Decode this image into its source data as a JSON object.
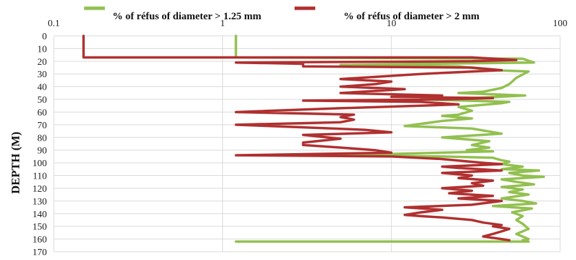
{
  "chart_data": {
    "type": "line",
    "title": "",
    "xlabel": "",
    "ylabel": "DEPTH (M)",
    "x_scale": "log",
    "xlim": [
      0.1,
      100
    ],
    "ylim": [
      0,
      170
    ],
    "y_inverted": true,
    "x_axis_position": "top",
    "grid": {
      "x": true,
      "y": true
    },
    "legend_position": "top",
    "x_tick_labels": [
      "0.1",
      "1",
      "10",
      "100"
    ],
    "y_tick_labels": [
      "0",
      "10",
      "20",
      "30",
      "40",
      "50",
      "60",
      "70",
      "80",
      "90",
      "100",
      "110",
      "120",
      "130",
      "140",
      "150",
      "160",
      "170"
    ],
    "series": [
      {
        "name": "% of  réfus  of diameter  > 1.25 mm",
        "color": "#92c050",
        "points": [
          [
            1.2,
            0
          ],
          [
            1.2,
            17
          ],
          [
            60,
            18
          ],
          [
            70,
            21
          ],
          [
            15,
            22
          ],
          [
            5,
            23
          ],
          [
            25,
            24
          ],
          [
            40,
            27
          ],
          [
            65,
            28
          ],
          [
            55,
            33
          ],
          [
            50,
            38
          ],
          [
            45,
            41
          ],
          [
            35,
            44
          ],
          [
            25,
            45
          ],
          [
            40,
            46
          ],
          [
            62,
            47
          ],
          [
            30,
            49
          ],
          [
            15,
            50
          ],
          [
            50,
            52
          ],
          [
            45,
            53
          ],
          [
            25,
            56
          ],
          [
            30,
            59
          ],
          [
            25,
            62
          ],
          [
            20,
            63
          ],
          [
            30,
            65
          ],
          [
            20,
            67
          ],
          [
            12,
            71
          ],
          [
            30,
            73
          ],
          [
            45,
            77
          ],
          [
            20,
            80
          ],
          [
            38,
            83
          ],
          [
            30,
            86
          ],
          [
            38,
            88
          ],
          [
            28,
            90
          ],
          [
            40,
            91
          ],
          [
            5,
            94
          ],
          [
            20,
            95
          ],
          [
            40,
            96
          ],
          [
            45,
            98
          ],
          [
            50,
            99
          ],
          [
            45,
            101
          ],
          [
            60,
            103
          ],
          [
            45,
            105
          ],
          [
            75,
            106
          ],
          [
            50,
            108
          ],
          [
            60,
            110
          ],
          [
            80,
            111
          ],
          [
            45,
            113
          ],
          [
            55,
            115
          ],
          [
            70,
            117
          ],
          [
            45,
            119
          ],
          [
            60,
            121
          ],
          [
            50,
            123
          ],
          [
            65,
            125
          ],
          [
            45,
            128
          ],
          [
            60,
            130
          ],
          [
            72,
            132
          ],
          [
            40,
            134
          ],
          [
            68,
            136
          ],
          [
            52,
            139
          ],
          [
            60,
            142
          ],
          [
            55,
            145
          ],
          [
            60,
            148
          ],
          [
            65,
            152
          ],
          [
            55,
            156
          ],
          [
            65,
            160
          ],
          [
            60,
            161
          ],
          [
            65,
            162
          ],
          [
            1.2,
            162
          ]
        ]
      },
      {
        "name": "% of réfus of diameter > 2 mm",
        "color": "#b03030",
        "points": [
          [
            0.15,
            0
          ],
          [
            0.15,
            17
          ],
          [
            30,
            17
          ],
          [
            55,
            19
          ],
          [
            30,
            20
          ],
          [
            1.2,
            21
          ],
          [
            3,
            22
          ],
          [
            3,
            24
          ],
          [
            30,
            25
          ],
          [
            45,
            27
          ],
          [
            15,
            30
          ],
          [
            5,
            34
          ],
          [
            10,
            36
          ],
          [
            8,
            38
          ],
          [
            5,
            40
          ],
          [
            12,
            42
          ],
          [
            5,
            45
          ],
          [
            20,
            47
          ],
          [
            10,
            48
          ],
          [
            40,
            49
          ],
          [
            20,
            50
          ],
          [
            3,
            51
          ],
          [
            15,
            52
          ],
          [
            25,
            54
          ],
          [
            5,
            57
          ],
          [
            1.2,
            60
          ],
          [
            6,
            62
          ],
          [
            5,
            64
          ],
          [
            6,
            66
          ],
          [
            5,
            68
          ],
          [
            1.2,
            70
          ],
          [
            3,
            72
          ],
          [
            7,
            74
          ],
          [
            10,
            76
          ],
          [
            3,
            78
          ],
          [
            5,
            81
          ],
          [
            3,
            84
          ],
          [
            3,
            86
          ],
          [
            5,
            88
          ],
          [
            8,
            90
          ],
          [
            10,
            92
          ],
          [
            1.2,
            94
          ],
          [
            10,
            95
          ],
          [
            20,
            97
          ],
          [
            35,
            100
          ],
          [
            45,
            101
          ],
          [
            20,
            103
          ],
          [
            25,
            104
          ],
          [
            45,
            106
          ],
          [
            20,
            108
          ],
          [
            30,
            110
          ],
          [
            25,
            112
          ],
          [
            40,
            114
          ],
          [
            30,
            116
          ],
          [
            35,
            118
          ],
          [
            20,
            120
          ],
          [
            30,
            122
          ],
          [
            22,
            124
          ],
          [
            40,
            126
          ],
          [
            25,
            128
          ],
          [
            45,
            130
          ],
          [
            30,
            133
          ],
          [
            12,
            135
          ],
          [
            20,
            137
          ],
          [
            15,
            139
          ],
          [
            12,
            141
          ],
          [
            15,
            142
          ],
          [
            20,
            143
          ],
          [
            30,
            145
          ],
          [
            35,
            147
          ],
          [
            45,
            149
          ],
          [
            40,
            150
          ],
          [
            50,
            152
          ],
          [
            45,
            154
          ],
          [
            40,
            156
          ],
          [
            35,
            158
          ],
          [
            45,
            160
          ],
          [
            50,
            161
          ]
        ]
      }
    ]
  }
}
